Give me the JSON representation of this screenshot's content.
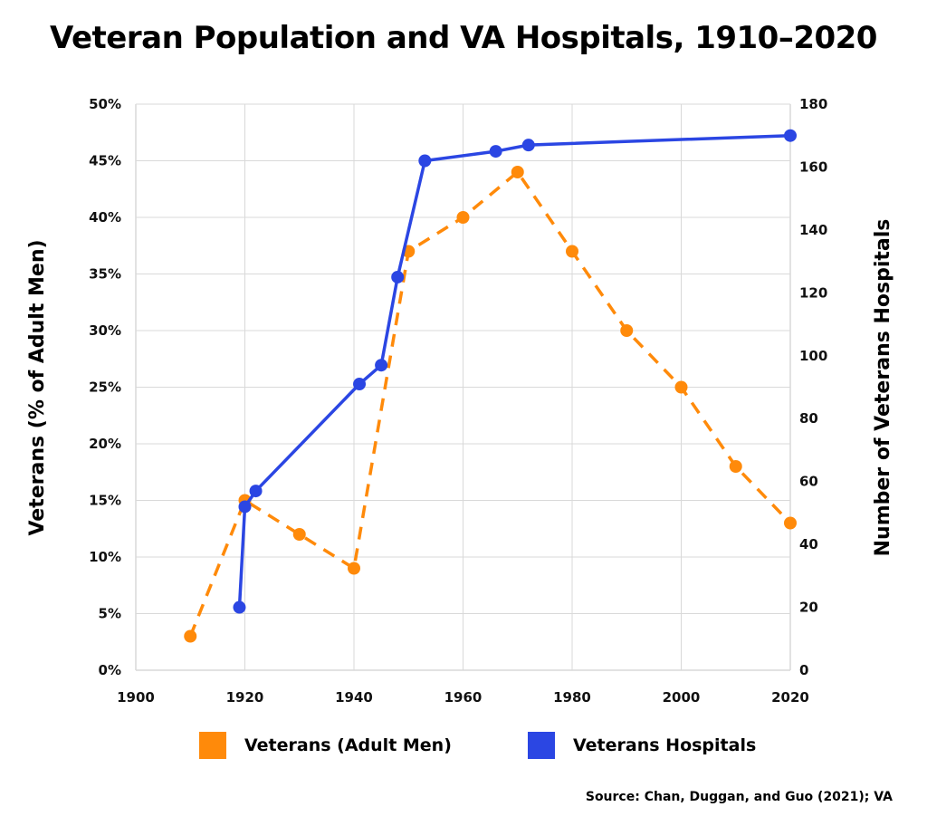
{
  "title": "Veteran Population and VA Hospitals, 1910–2020",
  "source": "Source: Chan, Duggan, and Guo (2021); VA",
  "colors": {
    "veterans": "#ff8a0a",
    "hospitals": "#2b46e3",
    "grid": "#d9d9d9"
  },
  "chart_data": {
    "type": "line",
    "x_axis": {
      "min": 1900,
      "max": 2020,
      "ticks": [
        "1900",
        "1920",
        "1940",
        "1960",
        "1980",
        "2000",
        "2020"
      ]
    },
    "y_left": {
      "label": "Veterans (% of Adult Men)",
      "min": 0,
      "max": 50,
      "ticks": [
        "0%",
        "5%",
        "10%",
        "15%",
        "20%",
        "25%",
        "30%",
        "35%",
        "40%",
        "45%",
        "50%"
      ]
    },
    "y_right": {
      "label": "Number of Veterans Hospitals",
      "min": 0,
      "max": 180,
      "ticks": [
        "0",
        "20",
        "40",
        "60",
        "80",
        "100",
        "120",
        "140",
        "160",
        "180"
      ]
    },
    "grid": true,
    "legend_position": "bottom",
    "series": [
      {
        "name": "Veterans (Adult Men)",
        "axis": "left",
        "style": "dashed",
        "points": [
          [
            1910,
            3
          ],
          [
            1920,
            15
          ],
          [
            1930,
            12
          ],
          [
            1940,
            9
          ],
          [
            1950,
            37
          ],
          [
            1960,
            40
          ],
          [
            1970,
            44
          ],
          [
            1980,
            37
          ],
          [
            1990,
            30
          ],
          [
            2000,
            25
          ],
          [
            2010,
            18
          ],
          [
            2020,
            13
          ]
        ]
      },
      {
        "name": "Veterans Hospitals",
        "axis": "right",
        "style": "solid",
        "points": [
          [
            1919,
            20
          ],
          [
            1920,
            52
          ],
          [
            1922,
            57
          ],
          [
            1941,
            91
          ],
          [
            1945,
            97
          ],
          [
            1948,
            125
          ],
          [
            1953,
            162
          ],
          [
            1966,
            165
          ],
          [
            1972,
            167
          ],
          [
            2020,
            170
          ]
        ]
      }
    ]
  }
}
